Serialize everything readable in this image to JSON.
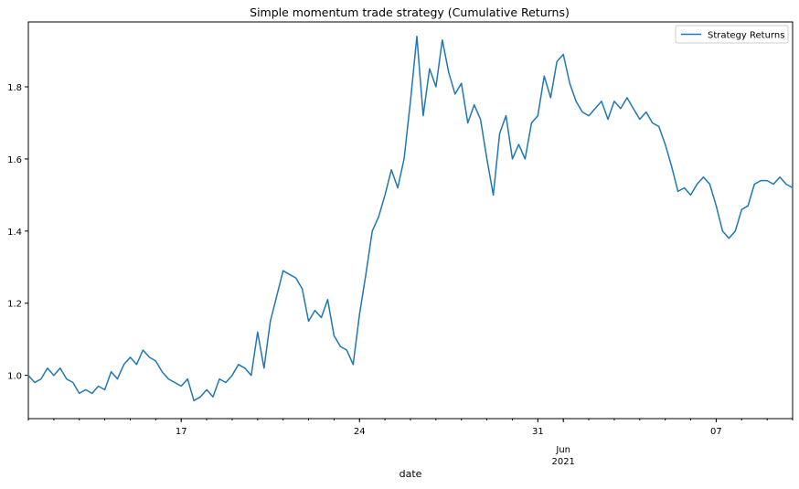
{
  "chart_data": {
    "type": "line",
    "title": "Simple momentum trade strategy (Cumulative Returns)",
    "xlabel": "date",
    "ylabel": "",
    "x_range": [
      "2021-05-11",
      "2021-06-10"
    ],
    "ylim": [
      0.88,
      1.98
    ],
    "yticks": [
      1.0,
      1.2,
      1.4,
      1.6,
      1.8
    ],
    "ytick_labels": [
      "1.0",
      "1.2",
      "1.4",
      "1.6",
      "1.8"
    ],
    "xticks": [
      {
        "date": "2021-05-17",
        "label": "17",
        "sublabel": ""
      },
      {
        "date": "2021-05-24",
        "label": "24",
        "sublabel": ""
      },
      {
        "date": "2021-05-31",
        "label": "31",
        "sublabel": ""
      },
      {
        "date": "2021-06-01",
        "label": "Jun",
        "sublabel": "2021"
      },
      {
        "date": "2021-06-07",
        "label": "07",
        "sublabel": ""
      }
    ],
    "grid": false,
    "legend": {
      "position": "top-right"
    },
    "series": [
      {
        "name": "Strategy Returns",
        "color": "#1f77b4",
        "points": [
          [
            "2021-05-11 00:00",
            1.0
          ],
          [
            "2021-05-11 06:00",
            0.98
          ],
          [
            "2021-05-11 12:00",
            0.99
          ],
          [
            "2021-05-11 18:00",
            1.02
          ],
          [
            "2021-05-12 00:00",
            1.0
          ],
          [
            "2021-05-12 06:00",
            1.02
          ],
          [
            "2021-05-12 12:00",
            0.99
          ],
          [
            "2021-05-12 18:00",
            0.98
          ],
          [
            "2021-05-13 00:00",
            0.95
          ],
          [
            "2021-05-13 06:00",
            0.96
          ],
          [
            "2021-05-13 12:00",
            0.95
          ],
          [
            "2021-05-13 18:00",
            0.97
          ],
          [
            "2021-05-14 00:00",
            0.96
          ],
          [
            "2021-05-14 06:00",
            1.01
          ],
          [
            "2021-05-14 12:00",
            0.99
          ],
          [
            "2021-05-14 18:00",
            1.03
          ],
          [
            "2021-05-15 00:00",
            1.05
          ],
          [
            "2021-05-15 06:00",
            1.03
          ],
          [
            "2021-05-15 12:00",
            1.07
          ],
          [
            "2021-05-15 18:00",
            1.05
          ],
          [
            "2021-05-16 00:00",
            1.04
          ],
          [
            "2021-05-16 06:00",
            1.01
          ],
          [
            "2021-05-16 12:00",
            0.99
          ],
          [
            "2021-05-16 18:00",
            0.98
          ],
          [
            "2021-05-17 00:00",
            0.97
          ],
          [
            "2021-05-17 06:00",
            0.99
          ],
          [
            "2021-05-17 12:00",
            0.93
          ],
          [
            "2021-05-17 18:00",
            0.94
          ],
          [
            "2021-05-18 00:00",
            0.96
          ],
          [
            "2021-05-18 06:00",
            0.94
          ],
          [
            "2021-05-18 12:00",
            0.99
          ],
          [
            "2021-05-18 18:00",
            0.98
          ],
          [
            "2021-05-19 00:00",
            1.0
          ],
          [
            "2021-05-19 06:00",
            1.03
          ],
          [
            "2021-05-19 12:00",
            1.02
          ],
          [
            "2021-05-19 18:00",
            1.0
          ],
          [
            "2021-05-20 00:00",
            1.12
          ],
          [
            "2021-05-20 06:00",
            1.02
          ],
          [
            "2021-05-20 12:00",
            1.15
          ],
          [
            "2021-05-20 18:00",
            1.22
          ],
          [
            "2021-05-21 00:00",
            1.29
          ],
          [
            "2021-05-21 06:00",
            1.28
          ],
          [
            "2021-05-21 12:00",
            1.27
          ],
          [
            "2021-05-21 18:00",
            1.24
          ],
          [
            "2021-05-22 00:00",
            1.15
          ],
          [
            "2021-05-22 06:00",
            1.18
          ],
          [
            "2021-05-22 12:00",
            1.16
          ],
          [
            "2021-05-22 18:00",
            1.21
          ],
          [
            "2021-05-23 00:00",
            1.11
          ],
          [
            "2021-05-23 06:00",
            1.08
          ],
          [
            "2021-05-23 12:00",
            1.07
          ],
          [
            "2021-05-23 18:00",
            1.03
          ],
          [
            "2021-05-24 00:00",
            1.17
          ],
          [
            "2021-05-24 06:00",
            1.28
          ],
          [
            "2021-05-24 12:00",
            1.4
          ],
          [
            "2021-05-24 18:00",
            1.44
          ],
          [
            "2021-05-25 00:00",
            1.5
          ],
          [
            "2021-05-25 06:00",
            1.57
          ],
          [
            "2021-05-25 12:00",
            1.52
          ],
          [
            "2021-05-25 18:00",
            1.6
          ],
          [
            "2021-05-26 00:00",
            1.76
          ],
          [
            "2021-05-26 06:00",
            1.94
          ],
          [
            "2021-05-26 12:00",
            1.72
          ],
          [
            "2021-05-26 18:00",
            1.85
          ],
          [
            "2021-05-27 00:00",
            1.8
          ],
          [
            "2021-05-27 06:00",
            1.93
          ],
          [
            "2021-05-27 12:00",
            1.84
          ],
          [
            "2021-05-27 18:00",
            1.78
          ],
          [
            "2021-05-28 00:00",
            1.81
          ],
          [
            "2021-05-28 06:00",
            1.7
          ],
          [
            "2021-05-28 12:00",
            1.75
          ],
          [
            "2021-05-28 18:00",
            1.71
          ],
          [
            "2021-05-29 00:00",
            1.6
          ],
          [
            "2021-05-29 06:00",
            1.5
          ],
          [
            "2021-05-29 12:00",
            1.67
          ],
          [
            "2021-05-29 18:00",
            1.72
          ],
          [
            "2021-05-30 00:00",
            1.6
          ],
          [
            "2021-05-30 06:00",
            1.64
          ],
          [
            "2021-05-30 12:00",
            1.6
          ],
          [
            "2021-05-30 18:00",
            1.7
          ],
          [
            "2021-05-31 00:00",
            1.72
          ],
          [
            "2021-05-31 06:00",
            1.83
          ],
          [
            "2021-05-31 12:00",
            1.77
          ],
          [
            "2021-05-31 18:00",
            1.87
          ],
          [
            "2021-06-01 00:00",
            1.89
          ],
          [
            "2021-06-01 06:00",
            1.81
          ],
          [
            "2021-06-01 12:00",
            1.76
          ],
          [
            "2021-06-01 18:00",
            1.73
          ],
          [
            "2021-06-02 00:00",
            1.72
          ],
          [
            "2021-06-02 06:00",
            1.74
          ],
          [
            "2021-06-02 12:00",
            1.76
          ],
          [
            "2021-06-02 18:00",
            1.71
          ],
          [
            "2021-06-03 00:00",
            1.76
          ],
          [
            "2021-06-03 06:00",
            1.74
          ],
          [
            "2021-06-03 12:00",
            1.77
          ],
          [
            "2021-06-03 18:00",
            1.74
          ],
          [
            "2021-06-04 00:00",
            1.71
          ],
          [
            "2021-06-04 06:00",
            1.73
          ],
          [
            "2021-06-04 12:00",
            1.7
          ],
          [
            "2021-06-04 18:00",
            1.69
          ],
          [
            "2021-06-05 00:00",
            1.64
          ],
          [
            "2021-06-05 06:00",
            1.58
          ],
          [
            "2021-06-05 12:00",
            1.51
          ],
          [
            "2021-06-05 18:00",
            1.52
          ],
          [
            "2021-06-06 00:00",
            1.5
          ],
          [
            "2021-06-06 06:00",
            1.53
          ],
          [
            "2021-06-06 12:00",
            1.55
          ],
          [
            "2021-06-06 18:00",
            1.53
          ],
          [
            "2021-06-07 00:00",
            1.47
          ],
          [
            "2021-06-07 06:00",
            1.4
          ],
          [
            "2021-06-07 12:00",
            1.38
          ],
          [
            "2021-06-07 18:00",
            1.4
          ],
          [
            "2021-06-08 00:00",
            1.46
          ],
          [
            "2021-06-08 06:00",
            1.47
          ],
          [
            "2021-06-08 12:00",
            1.53
          ],
          [
            "2021-06-08 18:00",
            1.54
          ],
          [
            "2021-06-09 00:00",
            1.54
          ],
          [
            "2021-06-09 06:00",
            1.53
          ],
          [
            "2021-06-09 12:00",
            1.55
          ],
          [
            "2021-06-09 18:00",
            1.53
          ],
          [
            "2021-06-10 00:00",
            1.52
          ]
        ]
      }
    ]
  }
}
